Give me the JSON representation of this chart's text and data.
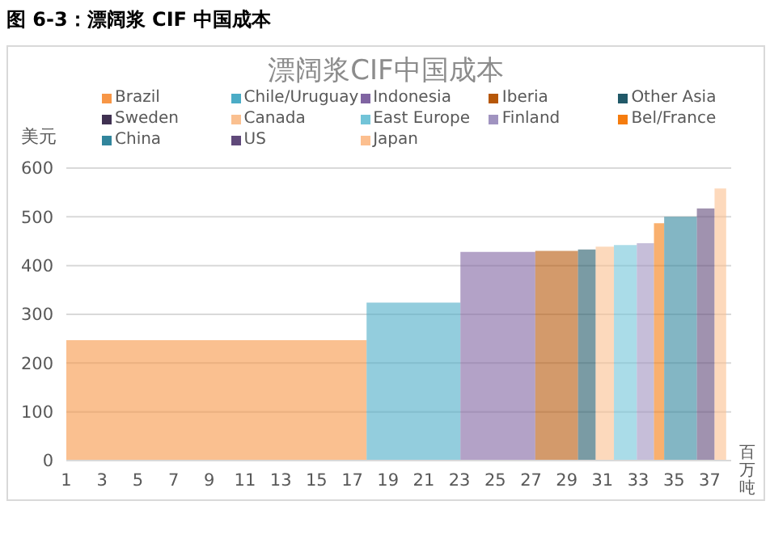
{
  "chart_data": {
    "type": "area",
    "title": "图 6-3：漂阔浆 CIF 中国成本",
    "subtitle": "漂阔浆CIF中国成本",
    "ylabel": "美元",
    "xlabel": "百万吨",
    "xlim": [
      1,
      38.2
    ],
    "xticks": [
      1,
      3,
      5,
      7,
      9,
      11,
      13,
      15,
      17,
      19,
      21,
      23,
      25,
      27,
      29,
      31,
      33,
      35,
      37
    ],
    "ylim": [
      0,
      600
    ],
    "yticks": [
      0,
      100,
      200,
      300,
      400,
      500,
      600
    ],
    "grid": "y",
    "legend": "top",
    "series": [
      {
        "name": "Brazil",
        "color": "#f79646",
        "x": [
          1,
          17.8
        ],
        "values": [
          247,
          247
        ]
      },
      {
        "name": "Chile/Uruguay",
        "color": "#4bacc6",
        "x": [
          17.8,
          23.05
        ],
        "values": [
          324,
          324
        ]
      },
      {
        "name": "Indonesia",
        "color": "#8064a2",
        "x": [
          23.05,
          27.24
        ],
        "values": [
          428,
          428
        ]
      },
      {
        "name": "Iberia",
        "color": "#b65708",
        "x": [
          27.24,
          29.63
        ],
        "values": [
          430,
          430
        ]
      },
      {
        "name": "Other Asia",
        "color": "#215968",
        "x": [
          29.63,
          30.62
        ],
        "values": [
          433,
          433
        ]
      },
      {
        "name": "Sweden",
        "color": "#403151"
      },
      {
        "name": "Canada",
        "color": "#fac090",
        "x": [
          30.62,
          31.64
        ],
        "values": [
          439,
          439
        ]
      },
      {
        "name": "East Europe",
        "color": "#72c4d8",
        "x": [
          31.64,
          32.92
        ],
        "values": [
          442,
          442
        ]
      },
      {
        "name": "Finland",
        "color": "#a093c0",
        "x": [
          32.92,
          33.88
        ],
        "values": [
          446,
          446
        ]
      },
      {
        "name": "Bel/France",
        "color": "#f57c0e",
        "x": [
          33.88,
          34.45
        ],
        "values": [
          487,
          487
        ]
      },
      {
        "name": "China",
        "color": "#31859c",
        "x": [
          34.45,
          36.28
        ],
        "values": [
          500,
          500
        ]
      },
      {
        "name": "US",
        "color": "#60497a",
        "x": [
          36.28,
          37.27
        ],
        "values": [
          517,
          517
        ]
      },
      {
        "name": "Japan",
        "color": "#fcbf8f",
        "x": [
          37.27,
          37.92
        ],
        "values": [
          558,
          558
        ]
      }
    ]
  }
}
